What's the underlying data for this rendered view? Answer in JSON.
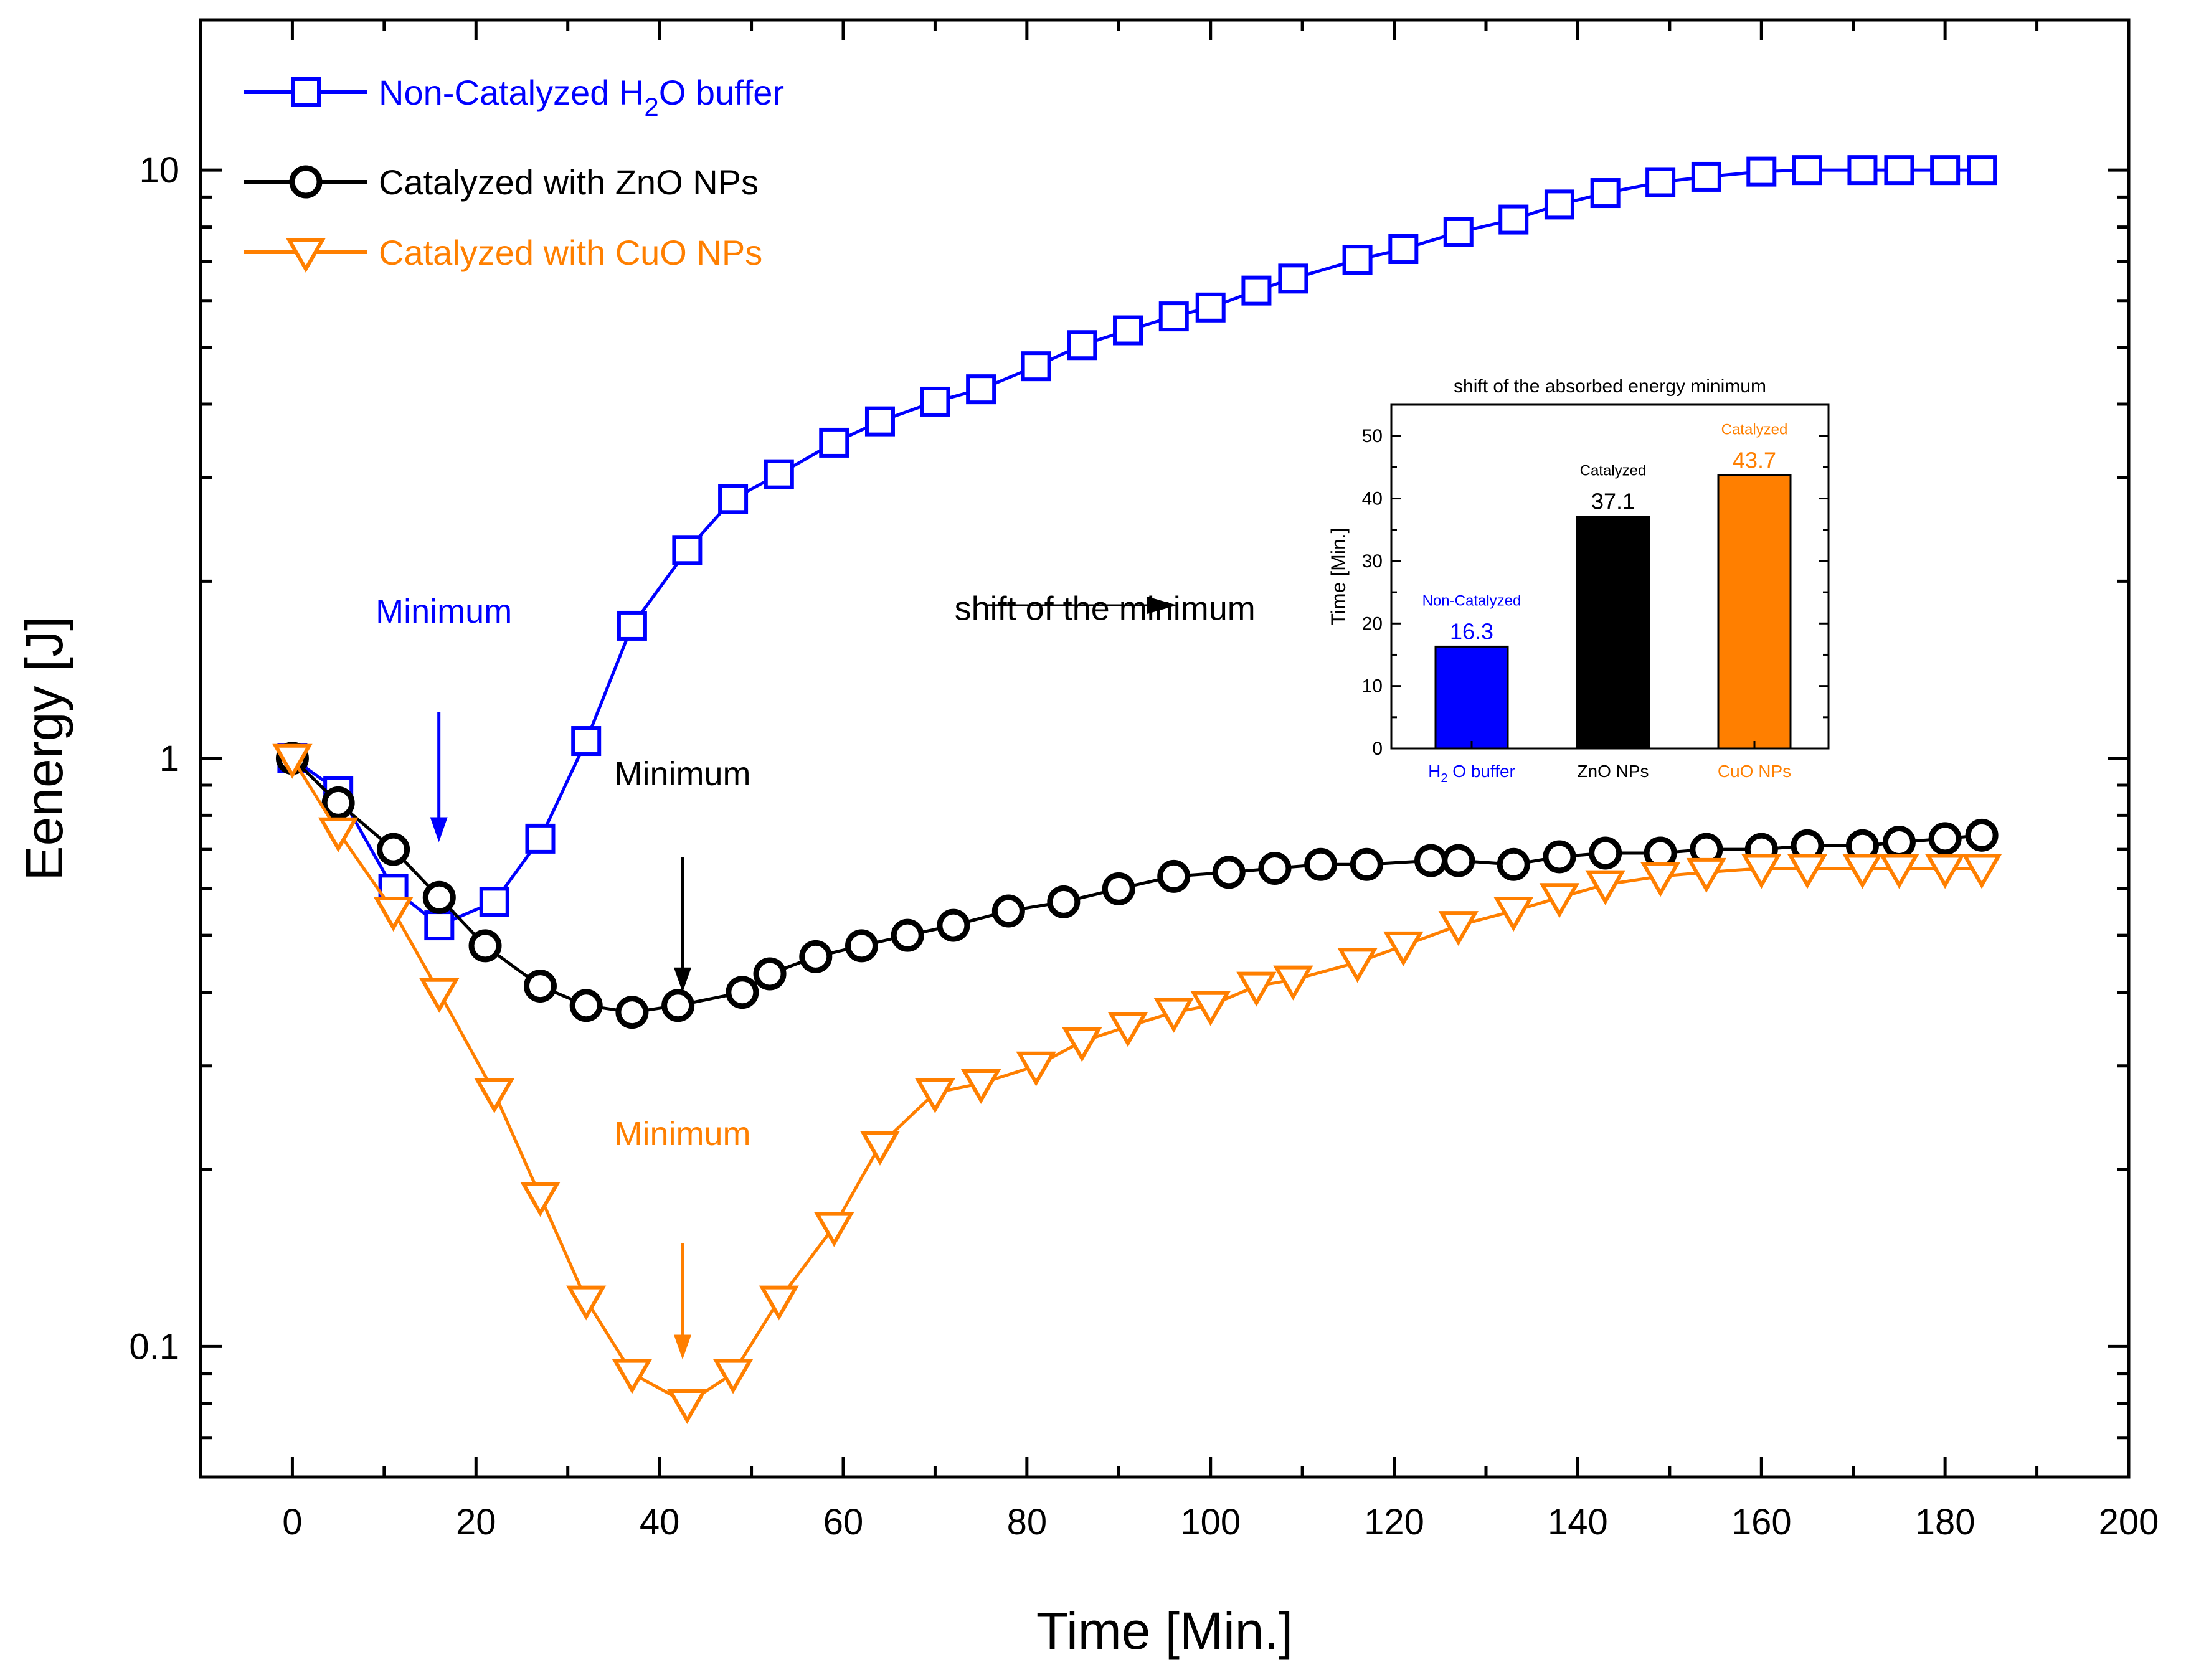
{
  "colors": {
    "blue": "#0000ff",
    "black": "#000000",
    "orange": "#ff7f00",
    "axis": "#000000",
    "background": "#ffffff"
  },
  "chart_data": [
    {
      "type": "line",
      "xlabel": "Time [Min.]",
      "ylabel": "Eenergy [J]",
      "yscale": "log",
      "xlim": [
        -10,
        200
      ],
      "ylim": [
        0.06,
        18
      ],
      "xticks": [
        0,
        20,
        40,
        60,
        80,
        100,
        120,
        140,
        160,
        180,
        200
      ],
      "xtick_labels": [
        "0",
        "20",
        "40",
        "60",
        "80",
        "100",
        "120",
        "140",
        "160",
        "180",
        "200"
      ],
      "yticks": [
        0.1,
        1,
        10
      ],
      "ytick_labels": [
        "0.1",
        "1",
        "10"
      ],
      "grid": false,
      "legend_position": "top-left",
      "series": [
        {
          "name": "Non-Catalyzed H2O buffer",
          "legend_main": "Non-Catalyzed H",
          "legend_sub": "2",
          "legend_tail": "O buffer",
          "color": "#0000ff",
          "marker": "square",
          "x": [
            0,
            5,
            11,
            16,
            22,
            27,
            32,
            37,
            43,
            48,
            53,
            59,
            64,
            70,
            75,
            81,
            86,
            91,
            96,
            100,
            105,
            109,
            116,
            121,
            127,
            133,
            138,
            143,
            149,
            154,
            160,
            165,
            171,
            175,
            180,
            184
          ],
          "y": [
            1.0,
            0.88,
            0.6,
            0.52,
            0.57,
            0.73,
            1.07,
            1.68,
            2.26,
            2.76,
            3.04,
            3.44,
            3.74,
            4.04,
            4.24,
            4.64,
            5.04,
            5.34,
            5.64,
            5.84,
            6.24,
            6.54,
            7.04,
            7.34,
            7.84,
            8.24,
            8.74,
            9.14,
            9.54,
            9.74,
            9.94,
            10.0,
            10.0,
            10.0,
            10.0,
            10.0
          ]
        },
        {
          "name": "Catalyzed with ZnO NPs",
          "legend_main": "Catalyzed with ZnO NPs",
          "color": "#000000",
          "marker": "circle",
          "x": [
            0,
            5,
            11,
            16,
            21,
            27,
            32,
            37,
            42,
            49,
            52,
            57,
            62,
            67,
            72,
            78,
            84,
            90,
            96,
            102,
            107,
            112,
            117,
            124,
            127,
            133,
            138,
            143,
            149,
            154,
            160,
            165,
            171,
            175,
            180,
            184
          ],
          "y": [
            1.0,
            0.84,
            0.7,
            0.58,
            0.48,
            0.41,
            0.38,
            0.37,
            0.38,
            0.4,
            0.43,
            0.46,
            0.48,
            0.5,
            0.52,
            0.55,
            0.57,
            0.6,
            0.63,
            0.64,
            0.65,
            0.66,
            0.66,
            0.67,
            0.67,
            0.66,
            0.68,
            0.69,
            0.69,
            0.7,
            0.7,
            0.71,
            0.71,
            0.72,
            0.73,
            0.74
          ]
        },
        {
          "name": "Catalyzed with CuO NPs",
          "legend_main": "Catalyzed with CuO NPs",
          "color": "#ff7f00",
          "marker": "triangle-down",
          "x": [
            0,
            5,
            11,
            16,
            22,
            27,
            32,
            37,
            43,
            48,
            53,
            59,
            64,
            70,
            75,
            81,
            86,
            91,
            96,
            100,
            105,
            109,
            116,
            121,
            127,
            133,
            138,
            143,
            149,
            154,
            160,
            165,
            171,
            175,
            180,
            184
          ],
          "y": [
            1.0,
            0.75,
            0.55,
            0.4,
            0.27,
            0.18,
            0.12,
            0.09,
            0.08,
            0.09,
            0.12,
            0.16,
            0.22,
            0.27,
            0.28,
            0.3,
            0.33,
            0.35,
            0.37,
            0.38,
            0.41,
            0.42,
            0.45,
            0.48,
            0.52,
            0.55,
            0.58,
            0.61,
            0.63,
            0.64,
            0.65,
            0.65,
            0.65,
            0.65,
            0.65,
            0.65
          ]
        }
      ],
      "annotations": [
        {
          "text": "Minimum",
          "color": "#0000ff",
          "x": 16.5,
          "y": 1.7,
          "arrow_y_from": 1.2,
          "arrow_y_to": 0.72
        },
        {
          "text": "Minimum",
          "color": "#000000",
          "x": 42.5,
          "y": 0.9,
          "arrow_y_from": 0.68,
          "arrow_y_to": 0.4
        },
        {
          "text": "Minimum",
          "color": "#ff7f00",
          "x": 42.5,
          "y": 0.22,
          "arrow_y_from": 0.15,
          "arrow_y_to": 0.095
        },
        {
          "text": "shift of the minimum",
          "color": "#000000",
          "x": 88.5,
          "y": 1.72
        }
      ]
    },
    {
      "type": "bar",
      "title": "shift of the absorbed energy minimum",
      "ylabel": "Time [Min.]",
      "ylim": [
        0,
        55
      ],
      "yticks": [
        0,
        10,
        20,
        30,
        40,
        50
      ],
      "ytick_labels": [
        "0",
        "10",
        "20",
        "30",
        "40",
        "50"
      ],
      "grid": false,
      "categories": [
        {
          "main": "H",
          "sub": "2",
          "tail": "O buffer",
          "color": "#0000ff"
        },
        {
          "main": "ZnO NPs",
          "sub": "",
          "tail": "",
          "color": "#000000"
        },
        {
          "main": "CuO NPs",
          "sub": "",
          "tail": "",
          "color": "#ff7f00"
        }
      ],
      "values": [
        16.3,
        37.1,
        43.7
      ],
      "value_labels": [
        "16.3",
        "37.1",
        "43.7"
      ],
      "bar_tags": [
        "Non-Catalyzed",
        "Catalyzed",
        "Catalyzed"
      ],
      "colors": [
        "#0000ff",
        "#000000",
        "#ff7f00"
      ]
    }
  ]
}
